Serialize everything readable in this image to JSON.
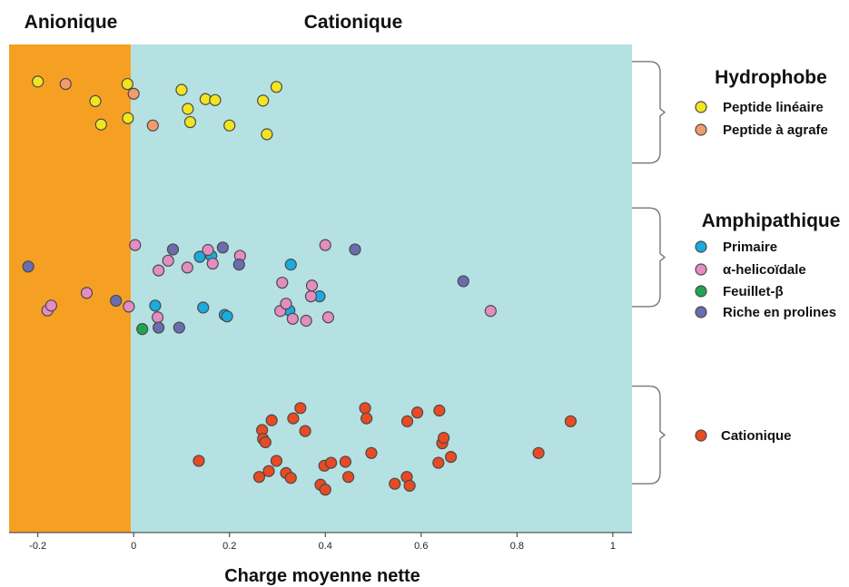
{
  "chart_data": {
    "type": "scatter",
    "xlabel": "Charge moyenne nette",
    "xlim": [
      -0.26,
      1.04
    ],
    "x_ticks": [
      -0.2,
      0,
      0.2,
      0.4,
      0.6,
      0.8,
      1
    ],
    "x_tick_labels": [
      "-0.2",
      "0",
      "0.2",
      "0.4",
      "0.6",
      "0.8",
      "1"
    ],
    "ylim": [
      0,
      100
    ],
    "regions": [
      {
        "label": "Anionique",
        "x_from": -0.26,
        "x_to": -0.006,
        "color": "#f5a023"
      },
      {
        "label": "Cationique",
        "x_from": -0.006,
        "x_to": 1.04,
        "color": "#b5e1e2"
      }
    ],
    "legend_groups": [
      {
        "title": "Hydrophobe",
        "y_range": [
          75.7,
          96.5
        ]
      },
      {
        "title": "Amphipathique",
        "y_range": [
          46.3,
          66.5
        ]
      },
      {
        "title": "",
        "y_range": [
          10.0,
          30.0
        ]
      }
    ],
    "series": [
      {
        "name": "Peptide linéaire",
        "color": "#f2e520",
        "points": [
          [
            -0.2,
            92.4
          ],
          [
            -0.08,
            88.4
          ],
          [
            -0.068,
            83.6
          ],
          [
            -0.013,
            91.9
          ],
          [
            -0.012,
            84.9
          ],
          [
            0.1,
            90.7
          ],
          [
            0.113,
            86.8
          ],
          [
            0.118,
            84.1
          ],
          [
            0.15,
            88.8
          ],
          [
            0.17,
            88.6
          ],
          [
            0.2,
            83.4
          ],
          [
            0.27,
            88.5
          ],
          [
            0.278,
            81.6
          ],
          [
            0.298,
            91.3
          ]
        ]
      },
      {
        "name": "Peptide à agrafe",
        "color": "#f29b6b",
        "points": [
          [
            -0.142,
            91.9
          ],
          [
            0.0,
            89.9
          ],
          [
            0.04,
            83.4
          ]
        ]
      },
      {
        "name": "Primaire",
        "color": "#1aabdf",
        "points": [
          [
            0.045,
            46.5
          ],
          [
            0.138,
            56.5
          ],
          [
            0.162,
            56.7
          ],
          [
            0.145,
            46.1
          ],
          [
            0.19,
            44.6
          ],
          [
            0.195,
            44.3
          ],
          [
            0.328,
            54.9
          ],
          [
            0.325,
            45.5
          ],
          [
            0.388,
            48.4
          ]
        ]
      },
      {
        "name": "α-helicoïdale",
        "color": "#e48cc4",
        "points": [
          [
            -0.18,
            45.5
          ],
          [
            -0.172,
            46.5
          ],
          [
            -0.098,
            49.1
          ],
          [
            -0.01,
            46.3
          ],
          [
            0.003,
            58.9
          ],
          [
            0.05,
            44.1
          ],
          [
            0.052,
            53.7
          ],
          [
            0.072,
            55.7
          ],
          [
            0.112,
            54.3
          ],
          [
            0.155,
            57.9
          ],
          [
            0.165,
            55.1
          ],
          [
            0.222,
            56.7
          ],
          [
            0.306,
            45.4
          ],
          [
            0.31,
            51.2
          ],
          [
            0.318,
            46.9
          ],
          [
            0.332,
            43.8
          ],
          [
            0.36,
            43.4
          ],
          [
            0.37,
            48.4
          ],
          [
            0.372,
            50.6
          ],
          [
            0.4,
            58.9
          ],
          [
            0.406,
            44.1
          ],
          [
            0.745,
            45.4
          ]
        ]
      },
      {
        "name": "Feuillet-β",
        "color": "#23a350",
        "points": [
          [
            0.018,
            41.7
          ]
        ]
      },
      {
        "name": "Riche en prolines",
        "color": "#6a6cb0",
        "points": [
          [
            -0.22,
            54.5
          ],
          [
            -0.037,
            47.5
          ],
          [
            0.052,
            42.0
          ],
          [
            0.082,
            58.0
          ],
          [
            0.095,
            42.0
          ],
          [
            0.186,
            58.4
          ],
          [
            0.22,
            54.9
          ],
          [
            0.462,
            58.0
          ],
          [
            0.688,
            51.5
          ]
        ]
      },
      {
        "name": "Cationique",
        "color": "#e84a23",
        "points": [
          [
            0.136,
            14.7
          ],
          [
            0.262,
            11.4
          ],
          [
            0.268,
            21.0
          ],
          [
            0.27,
            19.2
          ],
          [
            0.275,
            18.5
          ],
          [
            0.282,
            12.6
          ],
          [
            0.288,
            23.0
          ],
          [
            0.298,
            14.7
          ],
          [
            0.318,
            12.2
          ],
          [
            0.328,
            11.2
          ],
          [
            0.333,
            23.4
          ],
          [
            0.348,
            25.5
          ],
          [
            0.358,
            20.8
          ],
          [
            0.39,
            9.8
          ],
          [
            0.398,
            13.7
          ],
          [
            0.4,
            8.8
          ],
          [
            0.412,
            14.3
          ],
          [
            0.442,
            14.5
          ],
          [
            0.448,
            11.4
          ],
          [
            0.483,
            25.5
          ],
          [
            0.486,
            23.4
          ],
          [
            0.496,
            16.3
          ],
          [
            0.545,
            10.0
          ],
          [
            0.57,
            11.4
          ],
          [
            0.571,
            22.8
          ],
          [
            0.576,
            9.6
          ],
          [
            0.592,
            24.6
          ],
          [
            0.636,
            14.3
          ],
          [
            0.638,
            25.0
          ],
          [
            0.644,
            18.3
          ],
          [
            0.647,
            19.4
          ],
          [
            0.662,
            15.5
          ],
          [
            0.845,
            16.3
          ],
          [
            0.912,
            22.8
          ]
        ]
      }
    ]
  }
}
